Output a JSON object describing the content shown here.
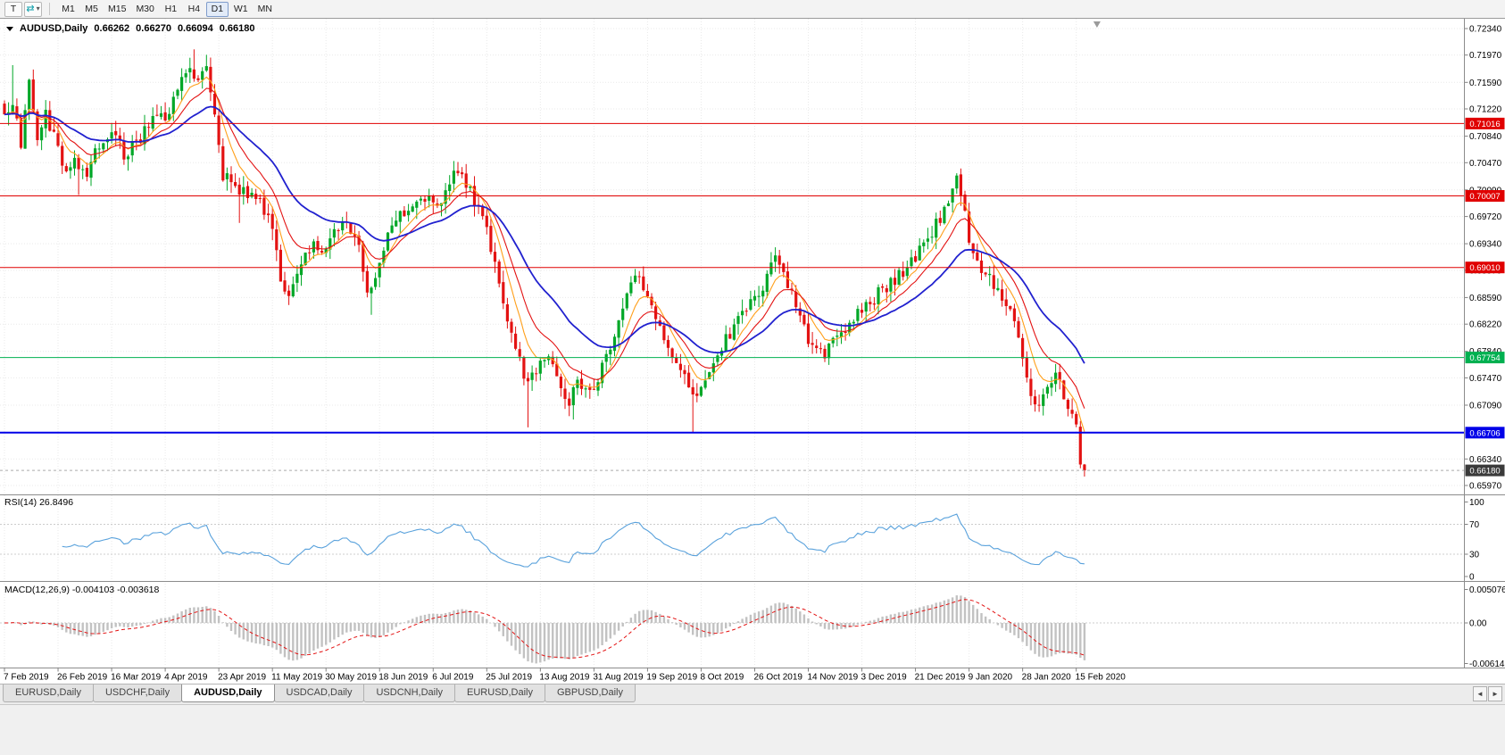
{
  "colors": {
    "up": "#00a727",
    "down": "#e31212",
    "ma_fast": "#ff9f1a",
    "ma_mid": "#e31212",
    "ma_slow": "#2121cf",
    "level_red": "#e00000",
    "level_green": "#00b050",
    "level_blue": "#0000e8",
    "current_bg": "#3a3a3a",
    "rsi_line": "#5aa2dc",
    "macd_bar": "#c2c2c2",
    "macd_signal": "#e31212",
    "grid": "#e9e9e9",
    "axis_text": "#000000"
  },
  "toolbar": {
    "tool_t_label": "T",
    "chart_tool_glyph": "⇄",
    "caret": "▾",
    "timeframes": [
      "M1",
      "M5",
      "M15",
      "M30",
      "H1",
      "H4",
      "D1",
      "W1",
      "MN"
    ],
    "active_timeframe": "D1"
  },
  "chart": {
    "title": {
      "symbol": "AUDUSD,Daily",
      "open": "0.66262",
      "high": "0.66270",
      "low": "0.66094",
      "close": "0.66180"
    },
    "price_axis_ticks": [
      "0.72340",
      "0.71970",
      "0.71590",
      "0.71220",
      "0.70840",
      "0.70470",
      "0.70090",
      "0.69720",
      "0.69340",
      "0.68970",
      "0.68590",
      "0.68220",
      "0.67840",
      "0.67470",
      "0.67090",
      "0.66340",
      "0.65970"
    ],
    "levels": [
      {
        "label": "0.71016",
        "value": 0.71016,
        "color_key": "level_red",
        "width": 1
      },
      {
        "label": "0.70007",
        "value": 0.70007,
        "color_key": "level_red",
        "width": 1
      },
      {
        "label": "0.69010",
        "value": 0.6901,
        "color_key": "level_red",
        "width": 1
      },
      {
        "label": "0.67754",
        "value": 0.67754,
        "color_key": "level_green",
        "width": 1
      },
      {
        "label": "0.66706",
        "value": 0.66706,
        "color_key": "level_blue",
        "width": 2
      }
    ],
    "current_price": {
      "label": "0.66180",
      "value": 0.6618
    }
  },
  "rsi": {
    "label": "RSI(14) 26.8496",
    "ticks": [
      {
        "v": 100,
        "label": "100"
      },
      {
        "v": 70,
        "label": "70"
      },
      {
        "v": 30,
        "label": "30"
      },
      {
        "v": 0,
        "label": "0"
      }
    ]
  },
  "macd": {
    "label": "MACD(12,26,9) -0.004103 -0.003618",
    "max": 0.005076,
    "min": -0.006148,
    "ticks": [
      {
        "v": 0.005076,
        "label": "0.005076"
      },
      {
        "v": 0,
        "label": "0.00"
      },
      {
        "v": -0.006148,
        "label": "-0.006148"
      }
    ]
  },
  "date_axis": {
    "labels": [
      "7 Feb 2019",
      "26 Feb 2019",
      "16 Mar 2019",
      "4 Apr 2019",
      "23 Apr 2019",
      "11 May 2019",
      "30 May 2019",
      "18 Jun 2019",
      "6 Jul 2019",
      "25 Jul 2019",
      "13 Aug 2019",
      "31 Aug 2019",
      "19 Sep 2019",
      "8 Oct 2019",
      "26 Oct 2019",
      "14 Nov 2019",
      "3 Dec 2019",
      "21 Dec 2019",
      "9 Jan 2020",
      "28 Jan 2020",
      "15 Feb 2020"
    ]
  },
  "tabs": {
    "scroll_left_glyph": "◄",
    "scroll_right_glyph": "►",
    "items": [
      {
        "label": "EURUSD,Daily",
        "active": false
      },
      {
        "label": "USDCHF,Daily",
        "active": false
      },
      {
        "label": "AUDUSD,Daily",
        "active": true
      },
      {
        "label": "USDCAD,Daily",
        "active": false
      },
      {
        "label": "USDCNH,Daily",
        "active": false
      },
      {
        "label": "EURUSD,Daily",
        "active": false
      },
      {
        "label": "GBPUSD,Daily",
        "active": false
      }
    ]
  },
  "chart_data": {
    "type": "candlestick",
    "symbol": "AUDUSD",
    "timeframe": "Daily",
    "ohlc_display": {
      "open": 0.66262,
      "high": 0.6627,
      "low": 0.66094,
      "close": 0.6618
    },
    "price_range": {
      "top": 0.7234,
      "bottom": 0.6597
    },
    "bar_count": 263,
    "bars_per_date_tick": 13,
    "horizontal_levels": [
      0.71016,
      0.70007,
      0.6901,
      0.67754,
      0.66706
    ],
    "indicators": {
      "rsi": {
        "period": 14,
        "last": 26.8496
      },
      "macd": {
        "fast": 12,
        "slow": 26,
        "signal": 9,
        "last_macd": -0.004103,
        "last_signal": -0.003618
      },
      "moving_averages": [
        {
          "period": 7,
          "color_key": "ma_fast"
        },
        {
          "period": 13,
          "color_key": "ma_mid"
        },
        {
          "period": 30,
          "color_key": "ma_slow"
        }
      ]
    },
    "price_waypoints": [
      [
        0,
        0.7108
      ],
      [
        2,
        0.7135
      ],
      [
        4,
        0.707
      ],
      [
        6,
        0.716
      ],
      [
        8,
        0.7085
      ],
      [
        10,
        0.7115
      ],
      [
        13,
        0.7068
      ],
      [
        15,
        0.7028
      ],
      [
        17,
        0.7052
      ],
      [
        20,
        0.703
      ],
      [
        23,
        0.7075
      ],
      [
        26,
        0.7095
      ],
      [
        29,
        0.7058
      ],
      [
        32,
        0.7075
      ],
      [
        36,
        0.711
      ],
      [
        39,
        0.7108
      ],
      [
        42,
        0.715
      ],
      [
        45,
        0.7185
      ],
      [
        47,
        0.716
      ],
      [
        49,
        0.7182
      ],
      [
        51,
        0.712
      ],
      [
        53,
        0.703
      ],
      [
        56,
        0.7012
      ],
      [
        59,
        0.7
      ],
      [
        62,
        0.6995
      ],
      [
        65,
        0.695
      ],
      [
        67,
        0.6885
      ],
      [
        69,
        0.6868
      ],
      [
        72,
        0.6905
      ],
      [
        75,
        0.6938
      ],
      [
        78,
        0.692
      ],
      [
        80,
        0.6952
      ],
      [
        83,
        0.696
      ],
      [
        86,
        0.6928
      ],
      [
        88,
        0.6862
      ],
      [
        91,
        0.69
      ],
      [
        94,
        0.6962
      ],
      [
        97,
        0.6978
      ],
      [
        100,
        0.6995
      ],
      [
        103,
        0.7005
      ],
      [
        106,
        0.6988
      ],
      [
        109,
        0.704
      ],
      [
        111,
        0.7032
      ],
      [
        113,
        0.7008
      ],
      [
        115,
        0.6985
      ],
      [
        117,
        0.6962
      ],
      [
        119,
        0.69
      ],
      [
        121,
        0.6858
      ],
      [
        123,
        0.681
      ],
      [
        125,
        0.677
      ],
      [
        127,
        0.674
      ],
      [
        129,
        0.6758
      ],
      [
        131,
        0.678
      ],
      [
        133,
        0.6762
      ],
      [
        135,
        0.673
      ],
      [
        137,
        0.671
      ],
      [
        139,
        0.674
      ],
      [
        141,
        0.6726
      ],
      [
        143,
        0.6732
      ],
      [
        145,
        0.676
      ],
      [
        147,
        0.679
      ],
      [
        149,
        0.6822
      ],
      [
        151,
        0.6862
      ],
      [
        153,
        0.6888
      ],
      [
        155,
        0.6872
      ],
      [
        157,
        0.6855
      ],
      [
        159,
        0.682
      ],
      [
        161,
        0.6788
      ],
      [
        163,
        0.677
      ],
      [
        165,
        0.6745
      ],
      [
        167,
        0.6716
      ],
      [
        169,
        0.673
      ],
      [
        171,
        0.6762
      ],
      [
        173,
        0.6772
      ],
      [
        175,
        0.68
      ],
      [
        177,
        0.6818
      ],
      [
        179,
        0.6838
      ],
      [
        181,
        0.6852
      ],
      [
        183,
        0.686
      ],
      [
        185,
        0.6885
      ],
      [
        187,
        0.692
      ],
      [
        189,
        0.6898
      ],
      [
        191,
        0.6862
      ],
      [
        193,
        0.6832
      ],
      [
        195,
        0.6802
      ],
      [
        197,
        0.6785
      ],
      [
        199,
        0.6782
      ],
      [
        201,
        0.6795
      ],
      [
        203,
        0.6805
      ],
      [
        205,
        0.6822
      ],
      [
        207,
        0.6838
      ],
      [
        209,
        0.6845
      ],
      [
        211,
        0.6858
      ],
      [
        213,
        0.687
      ],
      [
        215,
        0.688
      ],
      [
        217,
        0.6892
      ],
      [
        219,
        0.69
      ],
      [
        221,
        0.6912
      ],
      [
        223,
        0.6932
      ],
      [
        225,
        0.6952
      ],
      [
        227,
        0.6972
      ],
      [
        229,
        0.6992
      ],
      [
        231,
        0.7022
      ],
      [
        233,
        0.6985
      ],
      [
        234,
        0.693
      ],
      [
        236,
        0.6905
      ],
      [
        238,
        0.6895
      ],
      [
        240,
        0.6878
      ],
      [
        242,
        0.6862
      ],
      [
        244,
        0.6838
      ],
      [
        246,
        0.6812
      ],
      [
        247,
        0.6775
      ],
      [
        249,
        0.673
      ],
      [
        251,
        0.6705
      ],
      [
        253,
        0.6742
      ],
      [
        255,
        0.6752
      ],
      [
        257,
        0.672
      ],
      [
        259,
        0.6695
      ],
      [
        260,
        0.6682
      ],
      [
        261,
        0.66262
      ],
      [
        262,
        0.6618
      ]
    ],
    "forced_wicks": [
      {
        "bar": 2,
        "high": 0.7183
      },
      {
        "bar": 18,
        "low": 0.7002
      },
      {
        "bar": 46,
        "high": 0.7205
      },
      {
        "bar": 57,
        "low": 0.6963
      },
      {
        "bar": 89,
        "low": 0.6835
      },
      {
        "bar": 110,
        "high": 0.7048
      },
      {
        "bar": 127,
        "low": 0.6678
      },
      {
        "bar": 138,
        "low": 0.6689
      },
      {
        "bar": 167,
        "low": 0.6671
      },
      {
        "bar": 187,
        "high": 0.6929
      },
      {
        "bar": 199,
        "low": 0.6769
      },
      {
        "bar": 231,
        "high": 0.7032
      },
      {
        "bar": 250,
        "low": 0.67
      }
    ],
    "forced_closes": {
      "260": 0.6682,
      "261": 0.66262
    }
  }
}
